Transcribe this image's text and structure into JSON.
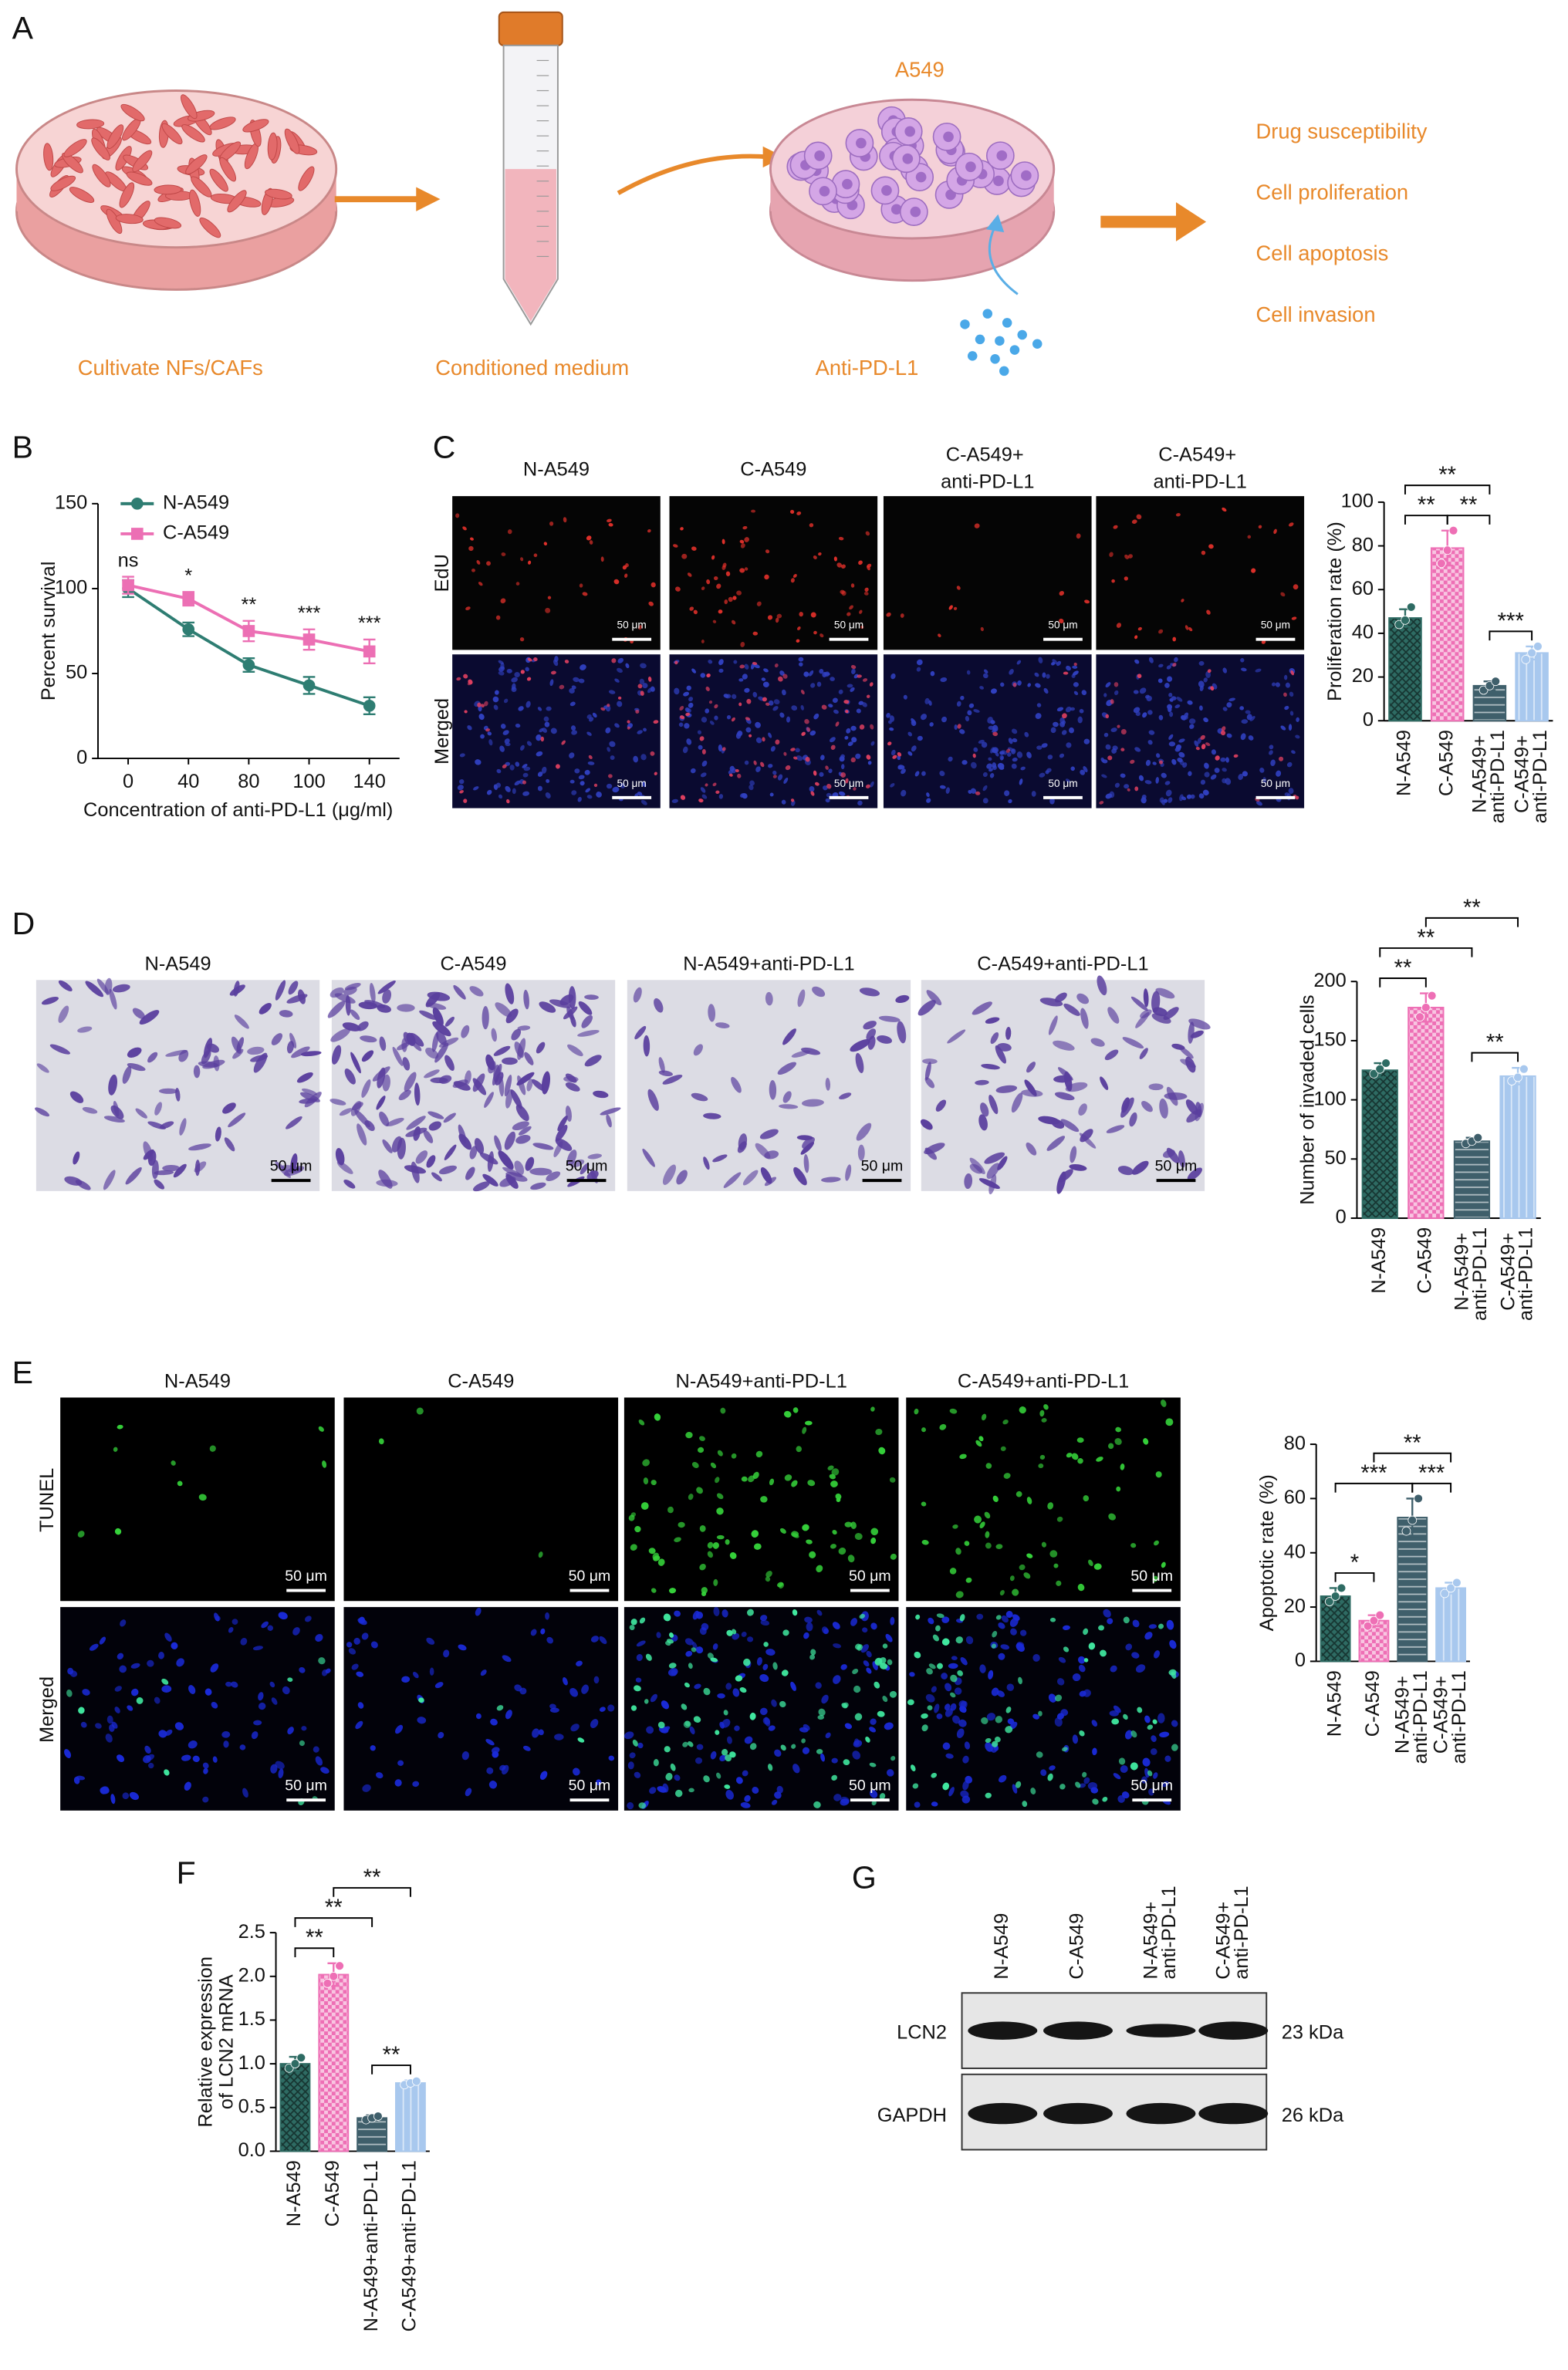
{
  "panel_labels": [
    "A",
    "B",
    "C",
    "D",
    "E",
    "F",
    "G"
  ],
  "panel_a": {
    "dish_label": "A549",
    "steps": [
      "Cultivate NFs/CAFs",
      "Conditioned medium",
      "Anti-PD-L1"
    ],
    "outcomes": [
      "Drug susceptibility",
      "Cell proliferation",
      "Cell apoptosis",
      "Cell invasion"
    ]
  },
  "panel_c_images": {
    "columns": [
      "N-A549",
      "C-A549",
      "C-A549+ anti-PD-L1",
      "C-A549+ anti-PD-L1"
    ],
    "rows": [
      "EdU",
      "Merged"
    ],
    "scale_bar": "50 μm"
  },
  "panel_d_images": {
    "columns": [
      "N-A549",
      "C-A549",
      "N-A549+anti-PD-L1",
      "C-A549+anti-PD-L1"
    ],
    "scale_bar": "50 μm"
  },
  "panel_e_images": {
    "columns": [
      "N-A549",
      "C-A549",
      "N-A549+anti-PD-L1",
      "C-A549+anti-PD-L1"
    ],
    "rows": [
      "TUNEL",
      "Merged"
    ],
    "scale_bar": "50 μm"
  },
  "panel_g": {
    "columns": [
      "N-A549",
      "C-A549",
      "N-A549+ anti-PD-L1",
      "C-A549+ anti-PD-L1"
    ],
    "rows": [
      {
        "protein": "LCN2",
        "size": "23 kDa"
      },
      {
        "protein": "GAPDH",
        "size": "26 kDa"
      }
    ]
  },
  "chart_data": [
    {
      "type": "line",
      "xlabel": "Concentration of anti-PD-L1 (μg/ml)",
      "ylabel": "Percent survival",
      "categories": [
        "0",
        "40",
        "80",
        "100",
        "140"
      ],
      "series": [
        {
          "name": "N-A549",
          "color": "#2e7d72",
          "marker": "circle",
          "values": [
            100,
            76,
            55,
            43,
            31
          ],
          "errors": [
            5,
            4,
            4,
            5,
            5
          ]
        },
        {
          "name": "C-A549",
          "color": "#ec6fb4",
          "marker": "square",
          "values": [
            102,
            94,
            75,
            70,
            63
          ],
          "errors": [
            5,
            4,
            6,
            6,
            7
          ]
        }
      ],
      "annotations": [
        "ns",
        "*",
        "**",
        "***",
        "***"
      ],
      "ylim": [
        0,
        150
      ],
      "yticks": [
        0,
        50,
        100,
        150
      ],
      "legend": "upper left"
    },
    {
      "type": "bar",
      "ylabel": "Proliferation rate (%)",
      "categories": [
        "N-A549",
        "C-A549",
        "N-A549+ anti-PD-L1",
        "C-A549+ anti-PD-L1"
      ],
      "values": [
        47,
        79,
        16,
        31
      ],
      "errors": [
        4,
        8,
        2,
        3
      ],
      "points": [
        [
          44,
          46,
          52
        ],
        [
          72,
          78,
          87
        ],
        [
          14,
          16,
          18
        ],
        [
          28,
          31,
          34
        ]
      ],
      "colors": [
        "#2e6b63",
        "#ee6fb5",
        "#3f5f6b",
        "#a8c8ee"
      ],
      "patterns": [
        "crosshatch",
        "checker",
        "hlines",
        "vlines"
      ],
      "ylim": [
        0,
        100
      ],
      "yticks": [
        0,
        20,
        40,
        60,
        80,
        100
      ],
      "significance": [
        {
          "pair": [
            "N-A549",
            "C-A549"
          ],
          "label": "**"
        },
        {
          "pair": [
            "C-A549",
            "N-A549+ anti-PD-L1"
          ],
          "label": "**"
        },
        {
          "pair": [
            "N-A549",
            "N-A549+ anti-PD-L1"
          ],
          "label": "**"
        },
        {
          "pair": [
            "N-A549+ anti-PD-L1",
            "C-A549+ anti-PD-L1"
          ],
          "label": "***"
        }
      ]
    },
    {
      "type": "bar",
      "ylabel": "Number of invaded cells",
      "categories": [
        "N-A549",
        "C-A549",
        "N-A549+ anti-PD-L1",
        "C-A549+ anti-PD-L1"
      ],
      "values": [
        125,
        178,
        65,
        120
      ],
      "errors": [
        6,
        12,
        3,
        7
      ],
      "points": [
        [
          122,
          126,
          131
        ],
        [
          170,
          178,
          188
        ],
        [
          63,
          65,
          68
        ],
        [
          116,
          119,
          126
        ]
      ],
      "colors": [
        "#2e6b63",
        "#ee6fb5",
        "#3f5f6b",
        "#a8c8ee"
      ],
      "patterns": [
        "crosshatch",
        "checker",
        "hlines",
        "vlines"
      ],
      "ylim": [
        0,
        200
      ],
      "yticks": [
        0,
        50,
        100,
        150,
        200
      ],
      "significance": [
        {
          "pair": [
            "N-A549",
            "C-A549"
          ],
          "label": "**"
        },
        {
          "pair": [
            "C-A549",
            "C-A549+ anti-PD-L1"
          ],
          "label": "**"
        },
        {
          "pair": [
            "N-A549",
            "N-A549+ anti-PD-L1"
          ],
          "label": "**"
        },
        {
          "pair": [
            "N-A549+ anti-PD-L1",
            "C-A549+ anti-PD-L1"
          ],
          "label": "**"
        }
      ]
    },
    {
      "type": "bar",
      "ylabel": "Apoptotic rate (%)",
      "categories": [
        "N-A549",
        "C-A549",
        "N-A549+ anti-PD-L1",
        "C-A549+ anti-PD-L1"
      ],
      "values": [
        24,
        15,
        53,
        27
      ],
      "errors": [
        3,
        2,
        7,
        2
      ],
      "points": [
        [
          22,
          24,
          27
        ],
        [
          13,
          15,
          17
        ],
        [
          48,
          52,
          60
        ],
        [
          25,
          27,
          29
        ]
      ],
      "colors": [
        "#2e6b63",
        "#ee6fb5",
        "#3f5f6b",
        "#a8c8ee"
      ],
      "patterns": [
        "crosshatch",
        "checker",
        "hlines",
        "vlines"
      ],
      "ylim": [
        0,
        80
      ],
      "yticks": [
        0,
        20,
        40,
        60,
        80
      ],
      "significance": [
        {
          "pair": [
            "N-A549",
            "C-A549"
          ],
          "label": "*"
        },
        {
          "pair": [
            "N-A549+ anti-PD-L1",
            "C-A549+ anti-PD-L1"
          ],
          "label": "***"
        },
        {
          "pair": [
            "N-A549",
            "N-A549+ anti-PD-L1"
          ],
          "label": "***"
        },
        {
          "pair": [
            "C-A549",
            "C-A549+ anti-PD-L1"
          ],
          "label": "**"
        }
      ]
    },
    {
      "type": "bar",
      "ylabel": [
        "Relative expression",
        "of LCN2 mRNA"
      ],
      "categories": [
        "N-A549",
        "C-A549",
        "N-A549+anti-PD-L1",
        "C-A549+anti-PD-L1"
      ],
      "values": [
        1.0,
        2.02,
        0.38,
        0.78
      ],
      "errors": [
        0.08,
        0.13,
        0.03,
        0.03
      ],
      "points": [
        [
          0.95,
          1.0,
          1.07
        ],
        [
          1.92,
          2.0,
          2.12
        ],
        [
          0.36,
          0.38,
          0.4
        ],
        [
          0.76,
          0.78,
          0.8
        ]
      ],
      "colors": [
        "#2e6b63",
        "#ee6fb5",
        "#3f5f6b",
        "#a8c8ee"
      ],
      "patterns": [
        "crosshatch",
        "checker",
        "hlines",
        "vlines"
      ],
      "ylim": [
        0,
        2.5
      ],
      "yticks": [
        {
          "value": 0,
          "label": "0.0"
        },
        0.5,
        {
          "value": 1,
          "label": "1.0"
        },
        1.5,
        {
          "value": 2,
          "label": "2.0"
        },
        2.5
      ],
      "significance": [
        {
          "pair": [
            "N-A549",
            "C-A549"
          ],
          "label": "**"
        },
        {
          "pair": [
            "C-A549",
            "C-A549+anti-PD-L1"
          ],
          "label": "**"
        },
        {
          "pair": [
            "N-A549",
            "N-A549+anti-PD-L1"
          ],
          "label": "**"
        },
        {
          "pair": [
            "N-A549+anti-PD-L1",
            "C-A549+anti-PD-L1"
          ],
          "label": "**"
        }
      ]
    }
  ]
}
